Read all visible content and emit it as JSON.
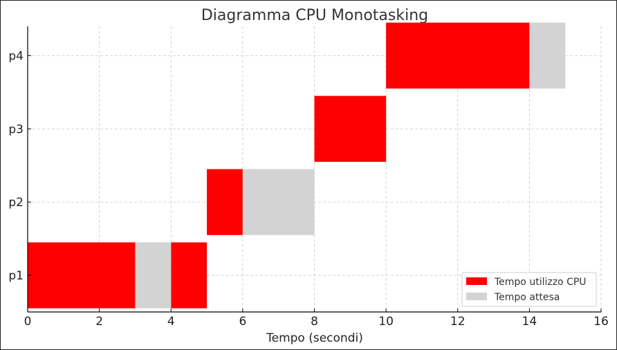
{
  "chart_data": {
    "type": "bar",
    "orientation": "horizontal-gantt",
    "title": "Diagramma CPU Monotasking",
    "xlabel": "Tempo (secondi)",
    "ylabel": "",
    "xlim": [
      0,
      16
    ],
    "x_ticks": [
      "0",
      "2",
      "4",
      "6",
      "8",
      "10",
      "12",
      "14",
      "16"
    ],
    "categories": [
      "p1",
      "p2",
      "p3",
      "p4"
    ],
    "grid": true,
    "legend_position": "bottom-right",
    "series": [
      {
        "name": "Tempo utilizzo CPU",
        "color": "#ff0000",
        "segments": [
          {
            "process": "p1",
            "start": 0,
            "end": 3
          },
          {
            "process": "p1",
            "start": 4,
            "end": 5
          },
          {
            "process": "p2",
            "start": 5,
            "end": 6
          },
          {
            "process": "p3",
            "start": 8,
            "end": 10
          },
          {
            "process": "p4",
            "start": 10,
            "end": 14
          }
        ]
      },
      {
        "name": "Tempo attesa",
        "color": "#d3d3d3",
        "segments": [
          {
            "process": "p1",
            "start": 3,
            "end": 4
          },
          {
            "process": "p2",
            "start": 6,
            "end": 8
          },
          {
            "process": "p4",
            "start": 14,
            "end": 15
          }
        ]
      }
    ]
  }
}
